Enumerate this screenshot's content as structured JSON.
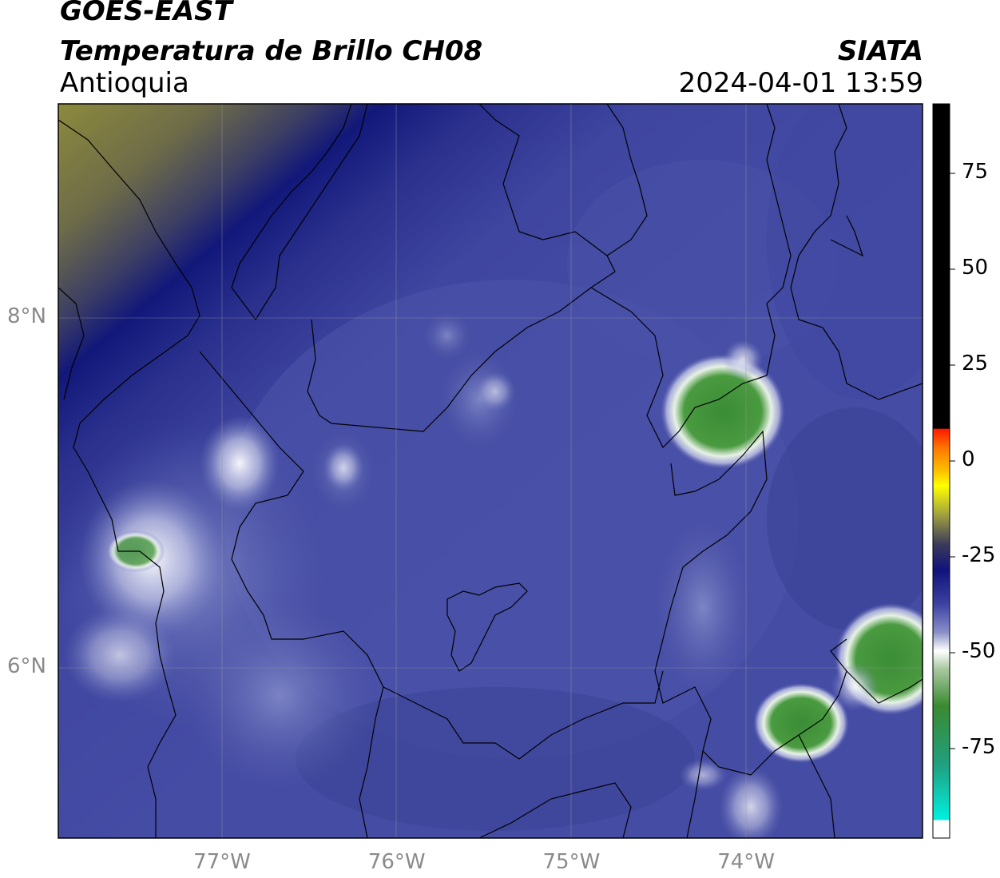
{
  "header": {
    "satellite": "GOES-EAST",
    "product": "Temperatura de Brillo CH08",
    "region": "Antioquia",
    "agency": "SIATA",
    "datetime": "2024-04-01 13:59"
  },
  "axes": {
    "lat_labels": [
      {
        "label": "8°N",
        "lat": 8
      },
      {
        "label": "6°N",
        "lat": 6
      }
    ],
    "lon_labels": [
      {
        "label": "77°W",
        "lon": -77
      },
      {
        "label": "76°W",
        "lon": -76
      },
      {
        "label": "75°W",
        "lon": -75
      },
      {
        "label": "74°W",
        "lon": -74
      }
    ]
  },
  "colorbar": {
    "ticks": [
      {
        "label": "75",
        "value": 75
      },
      {
        "label": "50",
        "value": 50
      },
      {
        "label": "25",
        "value": 25
      },
      {
        "label": "0",
        "value": 0
      },
      {
        "label": "-25",
        "value": -25
      },
      {
        "label": "-50",
        "value": -50
      },
      {
        "label": "-75",
        "value": -75
      }
    ]
  },
  "colors": {
    "background_deep_blue": "#3a3f95",
    "mid_blue": "#4a52a8",
    "light_blue": "#6a74c0",
    "navy": "#12187a",
    "olive": "#8a8a3a",
    "dark_gray": "#4a4a5a",
    "white": "#f4f4fa",
    "green": "#3e8e3a",
    "cold_green": "#2fa05a"
  }
}
